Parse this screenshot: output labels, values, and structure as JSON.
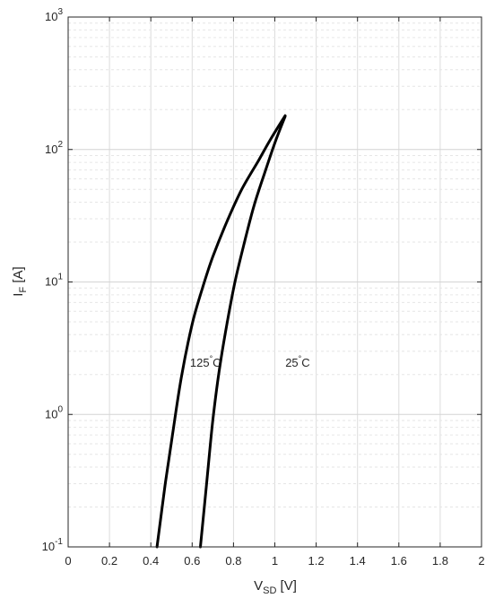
{
  "chart_data": {
    "type": "line",
    "xlabel": {
      "main": "V",
      "sub": "SD",
      "unit": " [V]"
    },
    "ylabel": {
      "main": "I",
      "sub": "F",
      "unit": " [A]"
    },
    "xlim": [
      0,
      2
    ],
    "ylim": [
      0.1,
      1000
    ],
    "y_scale": "log",
    "grid": true,
    "x_ticks": [
      0,
      0.2,
      0.4,
      0.6,
      0.8,
      1,
      1.2,
      1.4,
      1.6,
      1.8,
      2
    ],
    "x_tick_labels": [
      "0",
      "0.2",
      "0.4",
      "0.6",
      "0.8",
      "1",
      "1.2",
      "1.4",
      "1.6",
      "1.8",
      "2"
    ],
    "y_ticks": [
      {
        "value": 0.1,
        "base": "10",
        "exp": "-1"
      },
      {
        "value": 1,
        "base": "10",
        "exp": "0"
      },
      {
        "value": 10,
        "base": "10",
        "exp": "1"
      },
      {
        "value": 100,
        "base": "10",
        "exp": "2"
      },
      {
        "value": 1000,
        "base": "10",
        "exp": "3"
      }
    ],
    "series": [
      {
        "label": "125°C",
        "label_at": {
          "x": 0.74,
          "y": 2.3
        },
        "points": [
          [
            0.43,
            0.1
          ],
          [
            0.47,
            0.3
          ],
          [
            0.51,
            0.8
          ],
          [
            0.55,
            2.0
          ],
          [
            0.6,
            4.8
          ],
          [
            0.65,
            9.0
          ],
          [
            0.7,
            15.5
          ],
          [
            0.77,
            29
          ],
          [
            0.84,
            50
          ],
          [
            0.92,
            82
          ],
          [
            0.98,
            120
          ],
          [
            1.05,
            180
          ]
        ]
      },
      {
        "label": "25°C",
        "label_at": {
          "x": 1.17,
          "y": 2.3
        },
        "points": [
          [
            0.64,
            0.1
          ],
          [
            0.67,
            0.3
          ],
          [
            0.7,
            0.9
          ],
          [
            0.73,
            2.1
          ],
          [
            0.77,
            5.0
          ],
          [
            0.81,
            10.5
          ],
          [
            0.86,
            22
          ],
          [
            0.9,
            38
          ],
          [
            0.95,
            66
          ],
          [
            1.0,
            112
          ],
          [
            1.05,
            178
          ]
        ]
      }
    ]
  }
}
